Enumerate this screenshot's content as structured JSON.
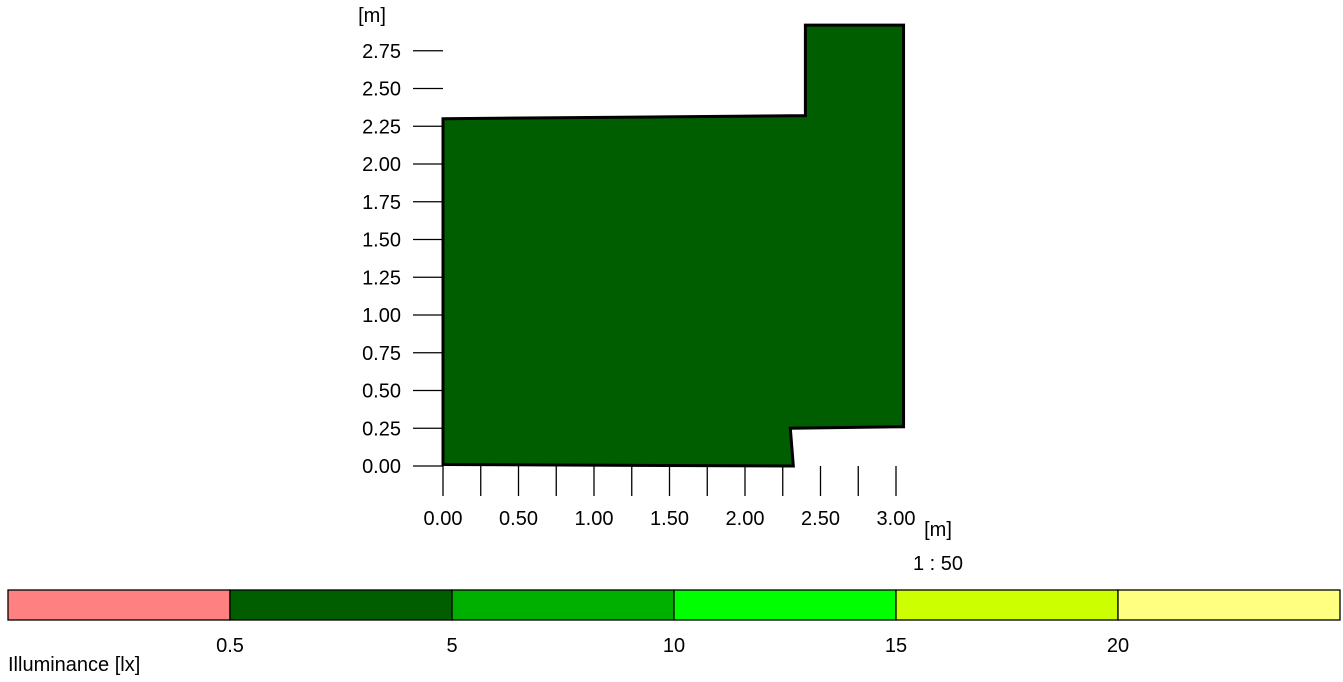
{
  "chart_data": {
    "type": "floor-plan-illuminance-map",
    "x_unit": "[m]",
    "y_unit": "[m]",
    "scale": "1 : 50",
    "x_ticks": [
      0.0,
      0.25,
      0.5,
      0.75,
      1.0,
      1.25,
      1.5,
      1.75,
      2.0,
      2.25,
      2.5,
      2.75,
      3.0
    ],
    "x_tick_labels": [
      "0.00",
      "0.50",
      "1.00",
      "1.50",
      "2.00",
      "2.50",
      "3.00"
    ],
    "x_tick_label_values": [
      0.0,
      0.5,
      1.0,
      1.5,
      2.0,
      2.5,
      3.0
    ],
    "y_ticks": [
      0.0,
      0.25,
      0.5,
      0.75,
      1.0,
      1.25,
      1.5,
      1.75,
      2.0,
      2.25,
      2.5,
      2.75
    ],
    "y_tick_labels": [
      "0.00",
      "0.25",
      "0.50",
      "0.75",
      "1.00",
      "1.25",
      "1.50",
      "1.75",
      "2.00",
      "2.25",
      "2.50",
      "2.75"
    ],
    "room_outline": [
      [
        0.0,
        2.3
      ],
      [
        2.4,
        2.32
      ],
      [
        2.4,
        2.92
      ],
      [
        3.05,
        2.92
      ],
      [
        3.05,
        0.26
      ],
      [
        2.3,
        0.25
      ],
      [
        2.32,
        0.0
      ],
      [
        0.0,
        0.01
      ]
    ],
    "room_fill_color": "#005e00",
    "legend": {
      "title": "Illuminance [lx]",
      "bands": [
        {
          "color": "#ff8080"
        },
        {
          "color": "#005e00"
        },
        {
          "color": "#00b000"
        },
        {
          "color": "#00ff00"
        },
        {
          "color": "#ccff00"
        },
        {
          "color": "#ffff80"
        }
      ],
      "thresholds": [
        "0.5",
        "5",
        "10",
        "15",
        "20"
      ]
    }
  }
}
